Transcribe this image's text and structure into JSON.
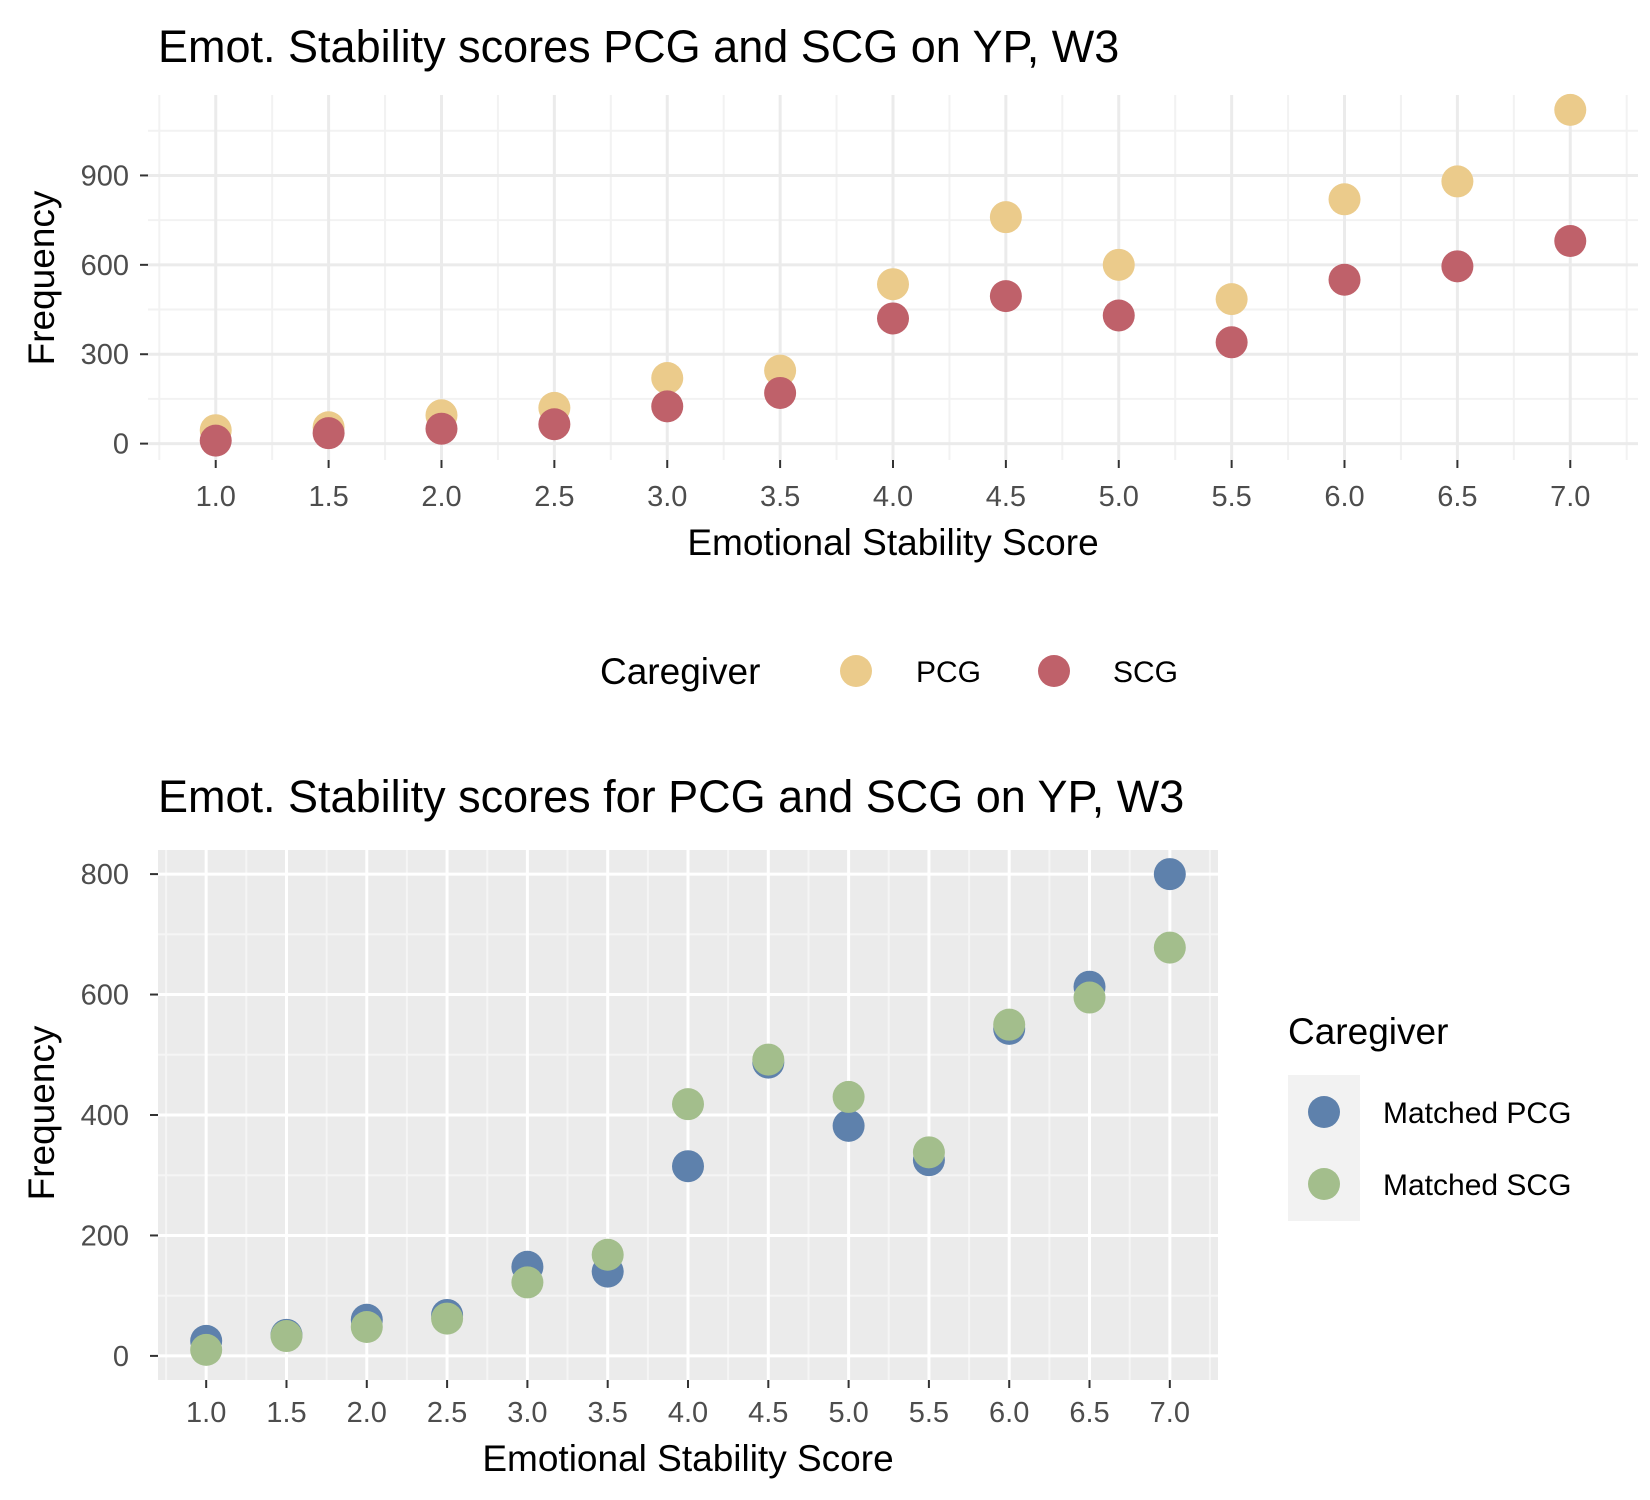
{
  "chart_data": [
    {
      "type": "scatter",
      "title": "Emot. Stability scores PCG and SCG on YP, W3",
      "xlabel": "Emotional Stability Score",
      "ylabel": "Frequency",
      "x": [
        1.0,
        1.5,
        2.0,
        2.5,
        3.0,
        3.5,
        4.0,
        4.5,
        5.0,
        5.5,
        6.0,
        6.5,
        7.0
      ],
      "x_tick_labels": [
        "1.0",
        "1.5",
        "2.0",
        "2.5",
        "3.0",
        "3.5",
        "4.0",
        "4.5",
        "5.0",
        "5.5",
        "6.0",
        "6.5",
        "7.0"
      ],
      "y_ticks": [
        0,
        300,
        600,
        900
      ],
      "y_tick_labels": [
        "0",
        "300",
        "600",
        "900"
      ],
      "xlim": [
        0.7,
        7.3
      ],
      "ylim": [
        -55,
        1170
      ],
      "theme": "minimal",
      "grid": true,
      "legend": {
        "title": "Caregiver",
        "position": "bottom",
        "entries": [
          "PCG",
          "SCG"
        ]
      },
      "series": [
        {
          "name": "PCG",
          "color": "#EBCB8B",
          "values": [
            45,
            55,
            95,
            120,
            220,
            245,
            535,
            760,
            600,
            485,
            820,
            880,
            1120
          ]
        },
        {
          "name": "SCG",
          "color": "#BF616A",
          "values": [
            10,
            35,
            50,
            65,
            125,
            170,
            420,
            495,
            430,
            340,
            550,
            595,
            680
          ]
        }
      ]
    },
    {
      "type": "scatter",
      "title": "Emot. Stability scores for PCG and SCG on YP, W3",
      "xlabel": "Emotional Stability Score",
      "ylabel": "Frequency",
      "x": [
        1.0,
        1.5,
        2.0,
        2.5,
        3.0,
        3.5,
        4.0,
        4.5,
        5.0,
        5.5,
        6.0,
        6.5,
        7.0
      ],
      "x_tick_labels": [
        "1.0",
        "1.5",
        "2.0",
        "2.5",
        "3.0",
        "3.5",
        "4.0",
        "4.5",
        "5.0",
        "5.5",
        "6.0",
        "6.5",
        "7.0"
      ],
      "y_ticks": [
        0,
        200,
        400,
        600,
        800
      ],
      "y_tick_labels": [
        "0",
        "200",
        "400",
        "600",
        "800"
      ],
      "xlim": [
        0.7,
        7.3
      ],
      "ylim": [
        -40,
        840
      ],
      "theme": "grey",
      "grid": true,
      "legend": {
        "title": "Caregiver",
        "position": "right",
        "entries": [
          "Matched PCG",
          "Matched SCG"
        ]
      },
      "series": [
        {
          "name": "Matched PCG",
          "color": "#5E81AC",
          "values": [
            25,
            35,
            60,
            68,
            148,
            140,
            315,
            487,
            382,
            325,
            543,
            613,
            800
          ]
        },
        {
          "name": "Matched SCG",
          "color": "#A3BE8C",
          "values": [
            10,
            33,
            48,
            62,
            122,
            168,
            418,
            492,
            430,
            338,
            550,
            595,
            678
          ]
        }
      ]
    }
  ]
}
